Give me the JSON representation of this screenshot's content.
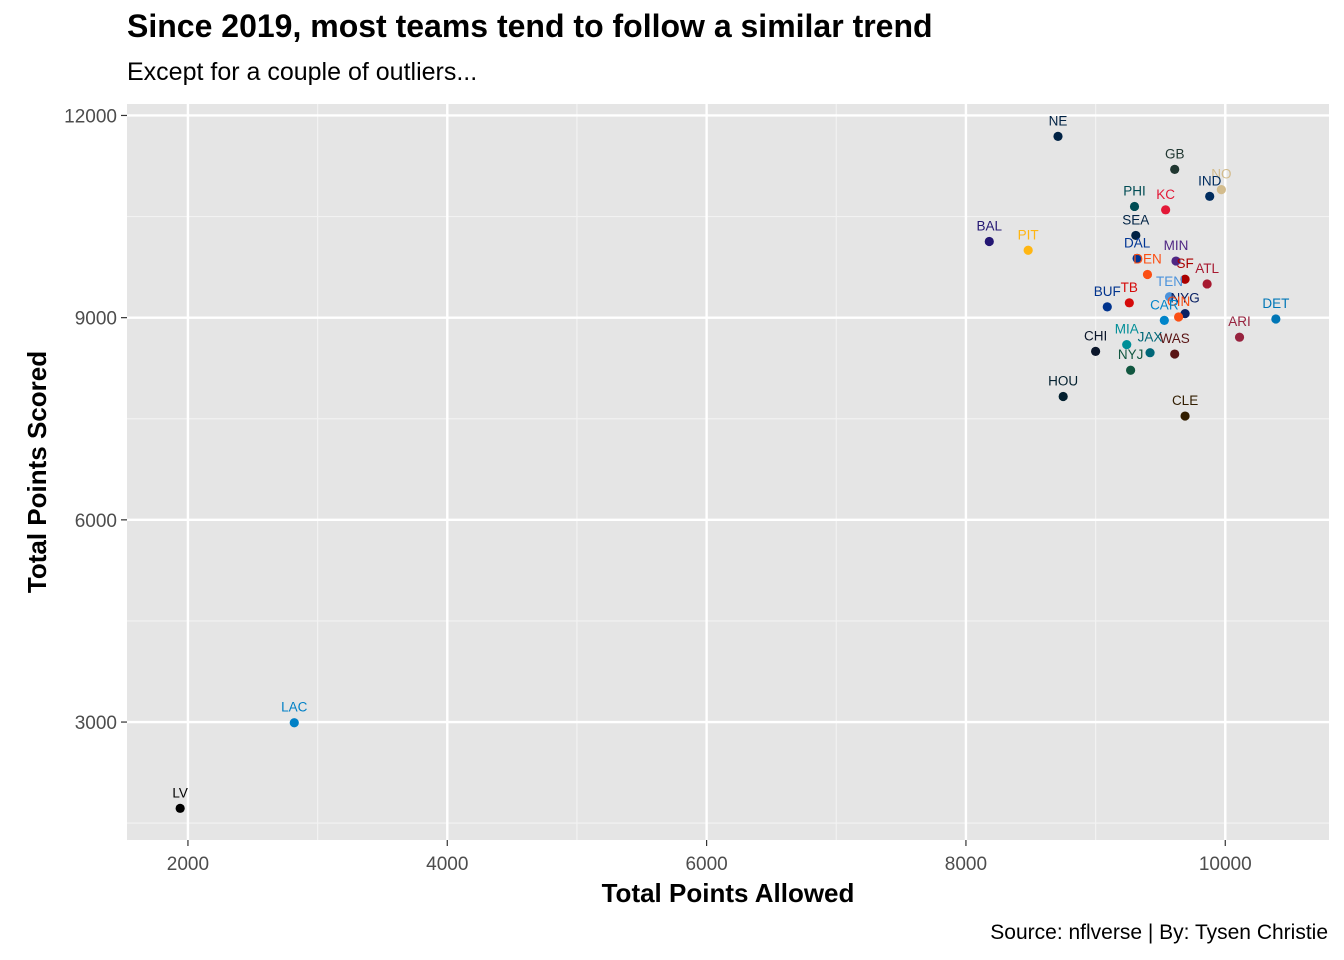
{
  "chart_data": {
    "type": "scatter",
    "title": "Since 2019, most teams tend to follow a similar trend",
    "subtitle": "Except for a couple of outliers...",
    "caption": "Source: nflverse | By: Tysen Christie",
    "xlabel": "Total Points Allowed",
    "ylabel": "Total Points Scored",
    "xlim": [
      1530,
      10800
    ],
    "ylim": [
      1250,
      12170
    ],
    "x_ticks": [
      2000,
      4000,
      6000,
      8000,
      10000
    ],
    "y_ticks": [
      3000,
      6000,
      9000,
      12000
    ],
    "grid": true,
    "points": [
      {
        "team": "NE",
        "x": 8710,
        "y": 11690,
        "color": "#002244"
      },
      {
        "team": "GB",
        "x": 9610,
        "y": 11200,
        "color": "#203731"
      },
      {
        "team": "NO",
        "x": 9970,
        "y": 10900,
        "color": "#D3BC8D"
      },
      {
        "team": "IND",
        "x": 9880,
        "y": 10800,
        "color": "#002C5F"
      },
      {
        "team": "PHI",
        "x": 9300,
        "y": 10650,
        "color": "#004C54"
      },
      {
        "team": "KC",
        "x": 9540,
        "y": 10600,
        "color": "#E31837"
      },
      {
        "team": "SEA",
        "x": 9310,
        "y": 10220,
        "color": "#002244"
      },
      {
        "team": "BAL",
        "x": 8180,
        "y": 10130,
        "color": "#241773"
      },
      {
        "team": "PIT",
        "x": 8480,
        "y": 10000,
        "color": "#FFB612"
      },
      {
        "team": "DAL",
        "x": 9320,
        "y": 9880,
        "color": "#003594"
      },
      {
        "team": "MIN",
        "x": 9620,
        "y": 9840,
        "color": "#4F2683"
      },
      {
        "team": "DEN",
        "x": 9400,
        "y": 9640,
        "color": "#FB4F14"
      },
      {
        "team": "SF",
        "x": 9690,
        "y": 9570,
        "color": "#AA0000"
      },
      {
        "team": "ATL",
        "x": 9860,
        "y": 9500,
        "color": "#A71930"
      },
      {
        "team": "TEN",
        "x": 9570,
        "y": 9310,
        "color": "#4B92DB"
      },
      {
        "team": "TB",
        "x": 9260,
        "y": 9220,
        "color": "#D50A0A"
      },
      {
        "team": "BUF",
        "x": 9090,
        "y": 9160,
        "color": "#00338D"
      },
      {
        "team": "NYG",
        "x": 9690,
        "y": 9060,
        "color": "#0B2265"
      },
      {
        "team": "CIN",
        "x": 9640,
        "y": 9010,
        "color": "#FB4F14"
      },
      {
        "team": "CAR",
        "x": 9530,
        "y": 8960,
        "color": "#0085CA"
      },
      {
        "team": "DET",
        "x": 10390,
        "y": 8980,
        "color": "#0076B6"
      },
      {
        "team": "ARI",
        "x": 10110,
        "y": 8710,
        "color": "#97233F"
      },
      {
        "team": "MIA",
        "x": 9240,
        "y": 8600,
        "color": "#008E97"
      },
      {
        "team": "CHI",
        "x": 9000,
        "y": 8500,
        "color": "#0B162A"
      },
      {
        "team": "JAX",
        "x": 9420,
        "y": 8480,
        "color": "#006778"
      },
      {
        "team": "WAS",
        "x": 9610,
        "y": 8460,
        "color": "#5A1414"
      },
      {
        "team": "NYJ",
        "x": 9270,
        "y": 8220,
        "color": "#125740"
      },
      {
        "team": "HOU",
        "x": 8750,
        "y": 7830,
        "color": "#03202F"
      },
      {
        "team": "CLE",
        "x": 9690,
        "y": 7540,
        "color": "#311D00"
      },
      {
        "team": "LAC",
        "x": 2820,
        "y": 2990,
        "color": "#0080C6"
      },
      {
        "team": "LV",
        "x": 1940,
        "y": 1720,
        "color": "#000000"
      }
    ]
  }
}
